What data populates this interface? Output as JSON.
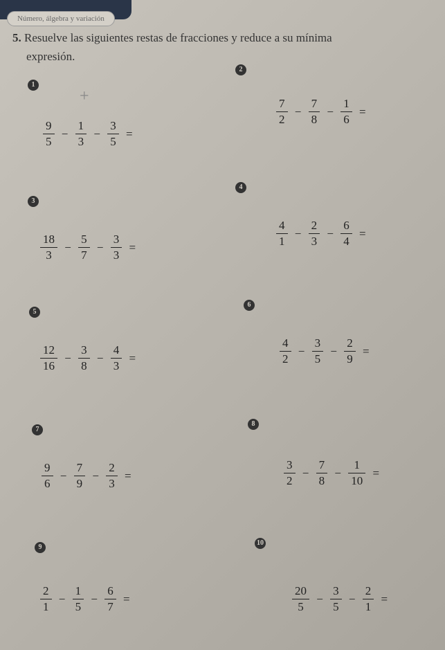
{
  "tab_label": "Número, álgebra y variación",
  "instruction_num": "5.",
  "instruction_text": "Resuelve las siguientes restas de fracciones y reduce a su mínima",
  "sub_instruction": "expresión.",
  "problems": [
    {
      "badge": "1",
      "terms": [
        {
          "n": "9",
          "d": "5"
        },
        {
          "n": "1",
          "d": "3"
        },
        {
          "n": "3",
          "d": "5"
        }
      ]
    },
    {
      "badge": "2",
      "terms": [
        {
          "n": "7",
          "d": "2"
        },
        {
          "n": "7",
          "d": "8"
        },
        {
          "n": "1",
          "d": "6"
        }
      ]
    },
    {
      "badge": "3",
      "terms": [
        {
          "n": "18",
          "d": "3"
        },
        {
          "n": "5",
          "d": "7"
        },
        {
          "n": "3",
          "d": "3"
        }
      ]
    },
    {
      "badge": "4",
      "terms": [
        {
          "n": "4",
          "d": "1"
        },
        {
          "n": "2",
          "d": "3"
        },
        {
          "n": "6",
          "d": "4"
        }
      ]
    },
    {
      "badge": "5",
      "terms": [
        {
          "n": "12",
          "d": "16"
        },
        {
          "n": "3",
          "d": "8"
        },
        {
          "n": "4",
          "d": "3"
        }
      ]
    },
    {
      "badge": "6",
      "terms": [
        {
          "n": "4",
          "d": "2"
        },
        {
          "n": "3",
          "d": "5"
        },
        {
          "n": "2",
          "d": "9"
        }
      ]
    },
    {
      "badge": "7",
      "terms": [
        {
          "n": "9",
          "d": "6"
        },
        {
          "n": "7",
          "d": "9"
        },
        {
          "n": "2",
          "d": "3"
        }
      ]
    },
    {
      "badge": "8",
      "terms": [
        {
          "n": "3",
          "d": "2"
        },
        {
          "n": "7",
          "d": "8"
        },
        {
          "n": "1",
          "d": "10"
        }
      ]
    },
    {
      "badge": "9",
      "terms": [
        {
          "n": "2",
          "d": "1"
        },
        {
          "n": "1",
          "d": "5"
        },
        {
          "n": "6",
          "d": "7"
        }
      ]
    },
    {
      "badge": "10",
      "terms": [
        {
          "n": "20",
          "d": "5"
        },
        {
          "n": "3",
          "d": "5"
        },
        {
          "n": "2",
          "d": "1"
        }
      ]
    }
  ],
  "minus": "−",
  "equals": "=",
  "plus_annotation": "+"
}
